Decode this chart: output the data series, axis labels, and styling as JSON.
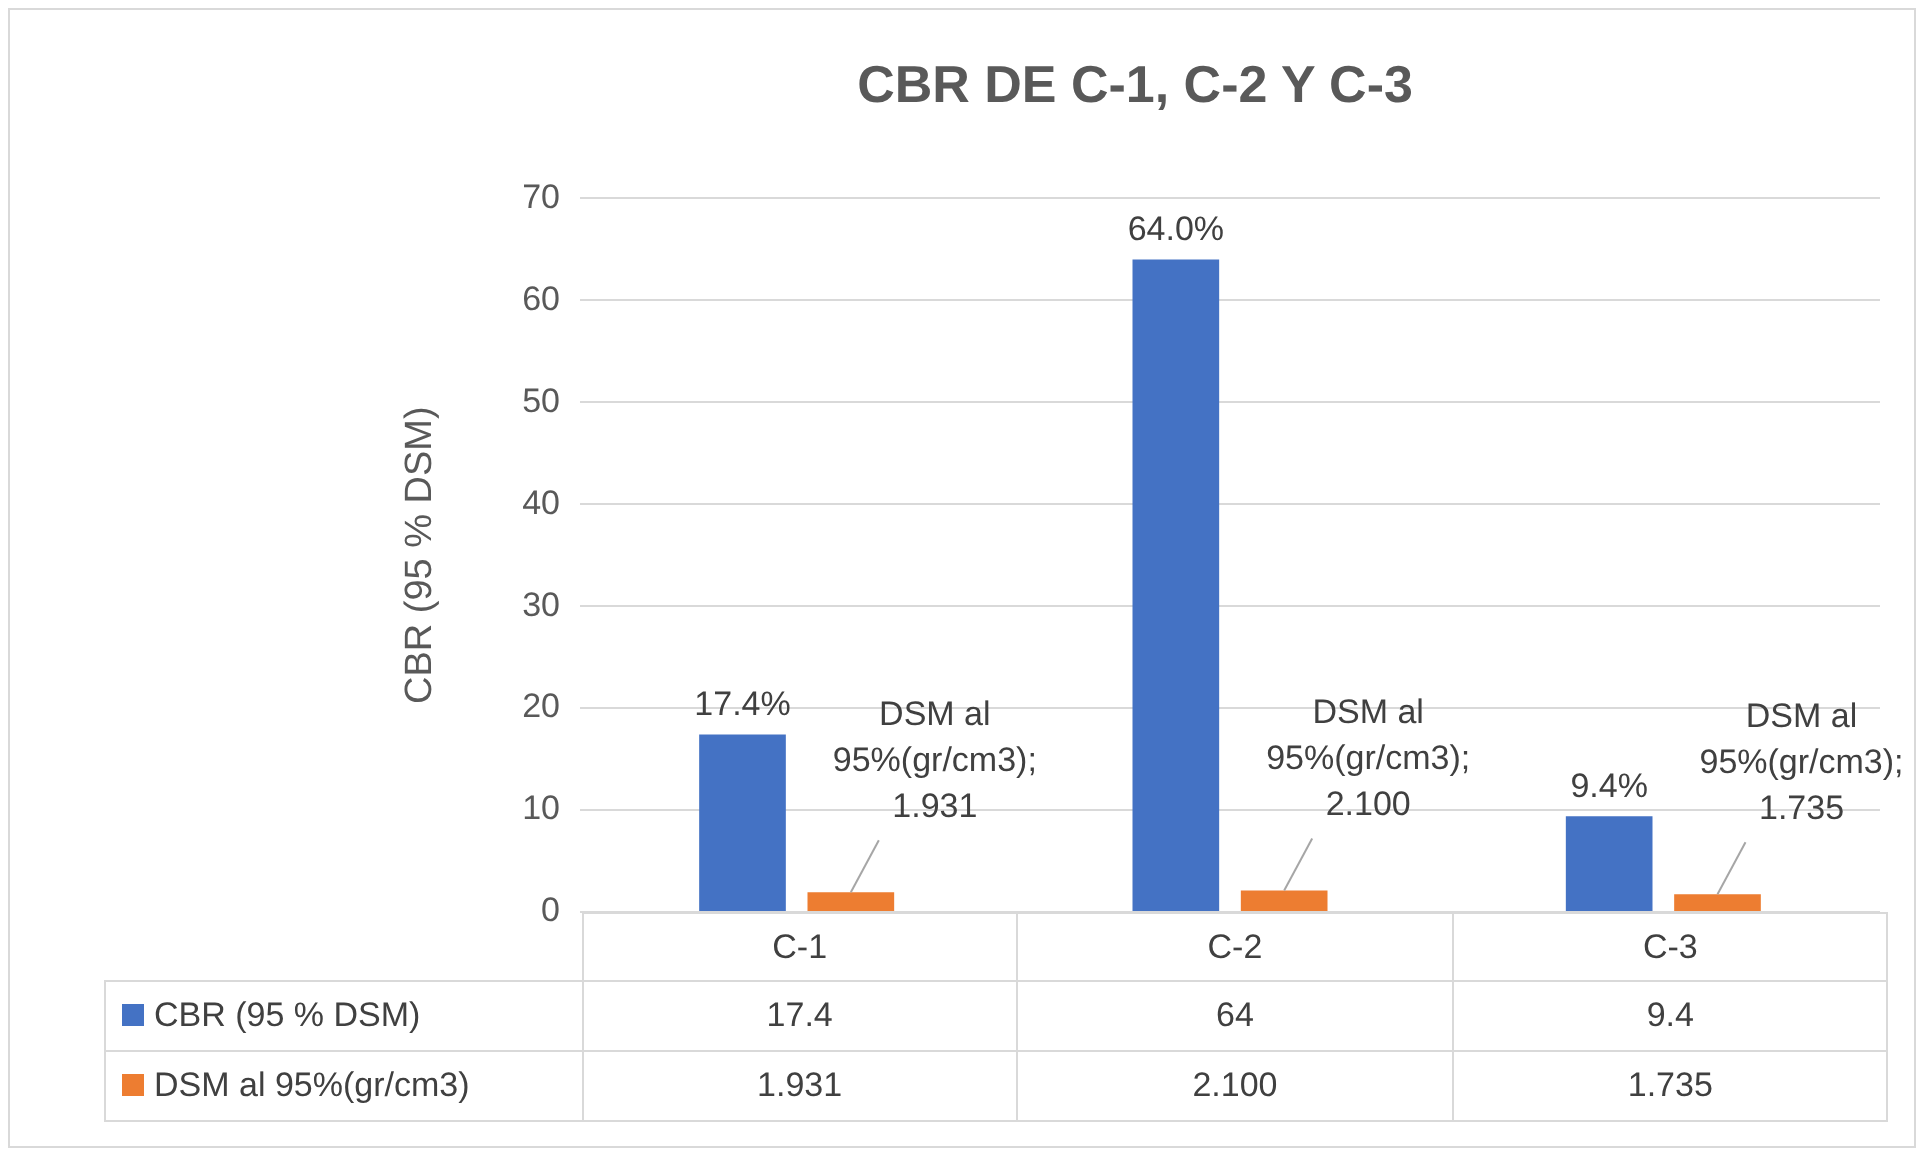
{
  "chart_data": {
    "type": "bar",
    "title": "CBR DE C-1, C-2 Y C-3",
    "ylabel": "CBR (95 % DSM)",
    "categories": [
      "C-1",
      "C-2",
      "C-3"
    ],
    "series": [
      {
        "name": "CBR (95 % DSM)",
        "color": "#4472c4",
        "values": [
          17.4,
          64,
          9.4
        ],
        "value_labels": [
          "17.4%",
          "64.0%",
          "9.4%"
        ]
      },
      {
        "name": "DSM al 95%(gr/cm3)",
        "color": "#ed7d31",
        "values": [
          1.931,
          2.1,
          1.735
        ],
        "value_labels": [
          "DSM al 95%(gr/cm3); 1.931",
          "DSM al 95%(gr/cm3); 2.100",
          "DSM al 95%(gr/cm3); 1.735"
        ]
      }
    ],
    "ylim": [
      0,
      70
    ],
    "yticks": [
      0,
      10,
      20,
      30,
      40,
      50,
      60,
      70
    ],
    "grid": "y",
    "legend": "bottom",
    "annotations": [
      "17.4",
      "64",
      "9.4",
      "1.931",
      "2.100",
      "1.735"
    ]
  }
}
